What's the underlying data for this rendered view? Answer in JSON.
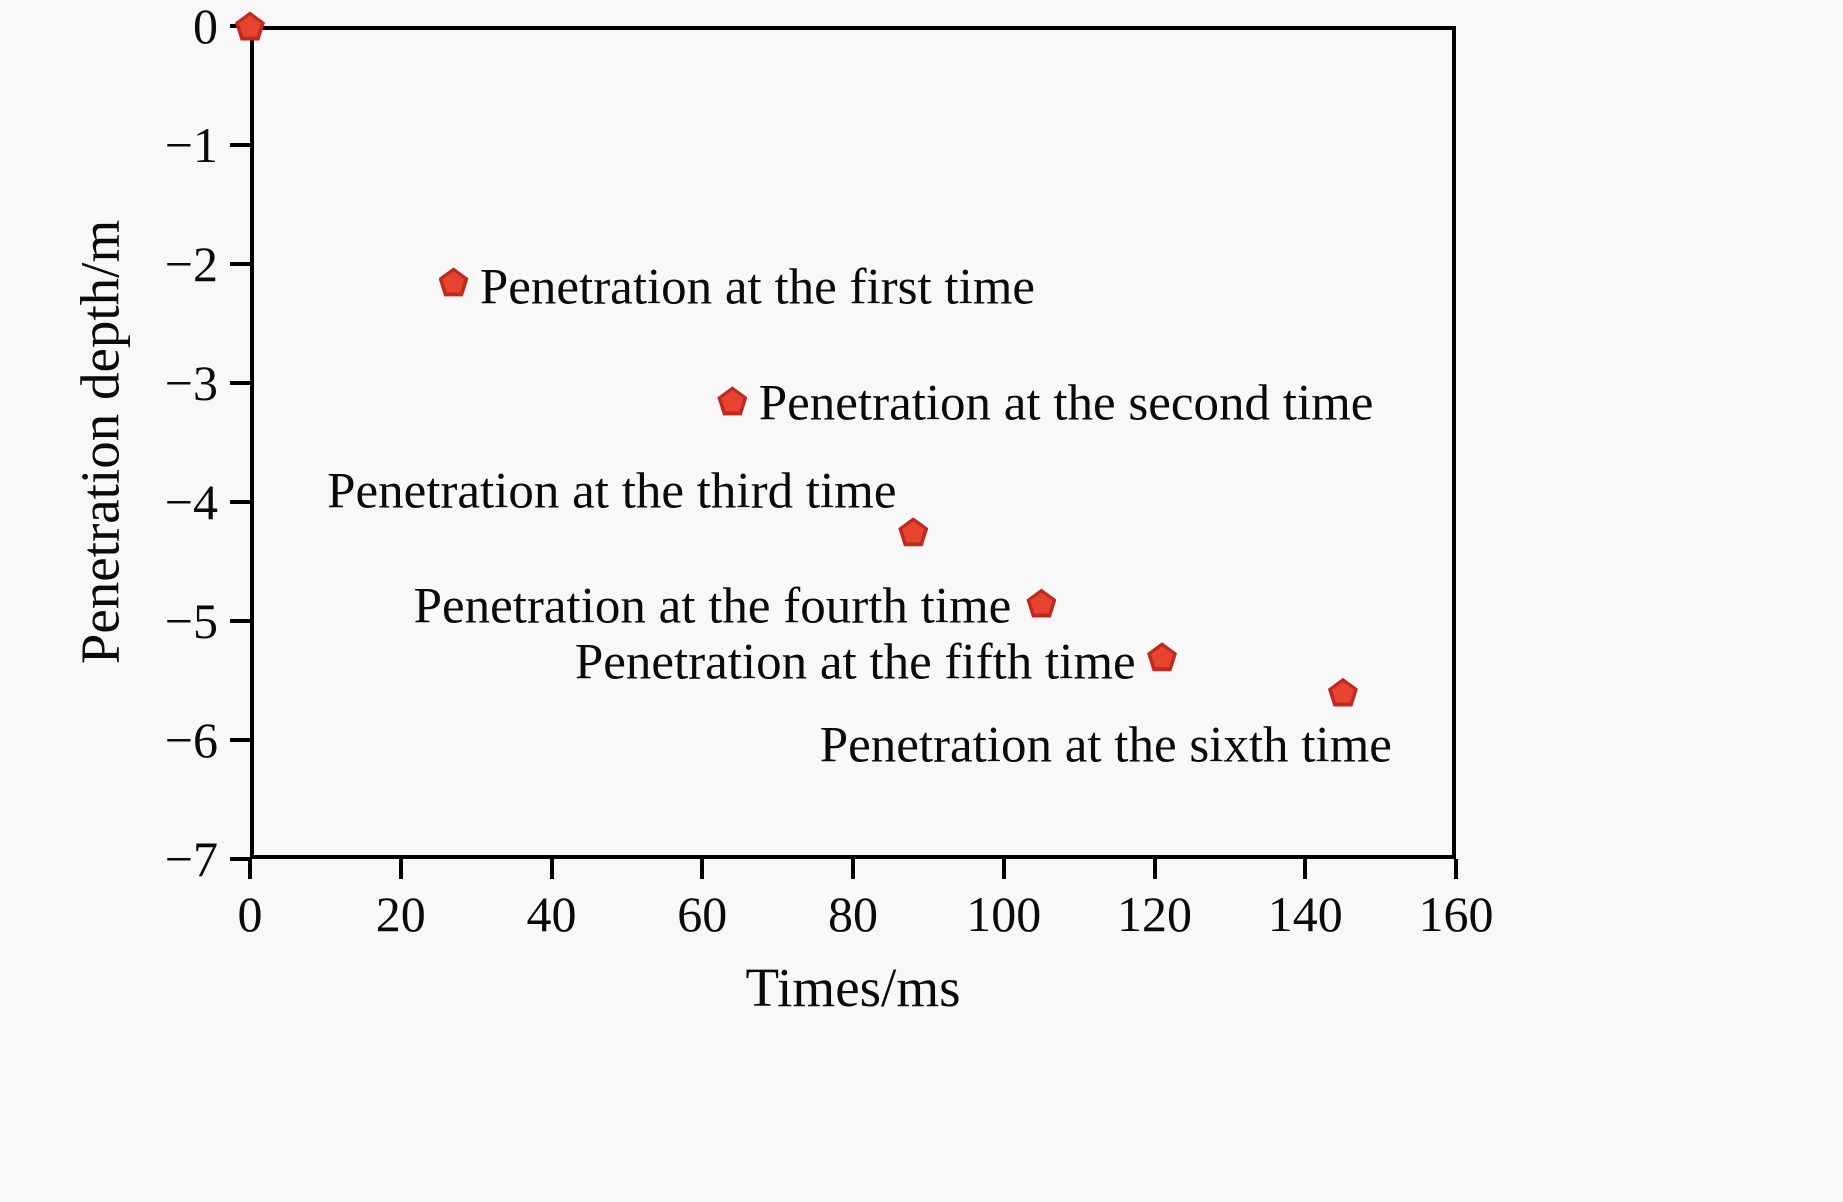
{
  "figure": {
    "background_color": "#f8f8f8",
    "axis_color": "#000000",
    "text_color": "#0a0a0a",
    "marker_fill_color": "#e8432f",
    "marker_edge_color": "#bf2a20"
  },
  "chart_data": {
    "type": "scatter",
    "title": "",
    "xlabel": "Times/ms",
    "ylabel": "Penetration depth/m",
    "xlim": [
      0,
      160
    ],
    "ylim": [
      -7,
      0
    ],
    "grid": false,
    "legend_position": "none",
    "marker_shape": "pentagon",
    "x_ticks": [
      0,
      20,
      40,
      60,
      80,
      100,
      120,
      140,
      160
    ],
    "y_ticks": [
      0,
      -1,
      -2,
      -3,
      -4,
      -5,
      -6,
      -7
    ],
    "x_tick_labels": [
      "0",
      "20",
      "40",
      "60",
      "80",
      "100",
      "120",
      "140",
      "160"
    ],
    "y_tick_labels": [
      "0",
      "−1",
      "−2",
      "−3",
      "−4",
      "−5",
      "−6",
      "−7"
    ],
    "points": [
      {
        "x": 0,
        "y": 0,
        "label": "",
        "label_x": null,
        "label_y": null,
        "align": "none"
      },
      {
        "x": 27,
        "y": -2.15,
        "label": "Penetration at the first time",
        "label_x": 30.5,
        "label_y": -2.2,
        "align": "left"
      },
      {
        "x": 64,
        "y": -3.15,
        "label": "Penetration at the second time",
        "label_x": 67.5,
        "label_y": -3.18,
        "align": "left"
      },
      {
        "x": 88,
        "y": -4.25,
        "label": "Penetration at the third time",
        "label_x": 48,
        "label_y": -3.92,
        "align": "center"
      },
      {
        "x": 105,
        "y": -4.85,
        "label": "Penetration at the fourth time",
        "label_x": 101,
        "label_y": -4.88,
        "align": "right"
      },
      {
        "x": 121,
        "y": -5.3,
        "label": "Penetration at the fifth time",
        "label_x": 117.5,
        "label_y": -5.35,
        "align": "right"
      },
      {
        "x": 145,
        "y": -5.6,
        "label": "Penetration at the sixth time",
        "label_x": 151.5,
        "label_y": -6.05,
        "align": "right"
      }
    ]
  }
}
